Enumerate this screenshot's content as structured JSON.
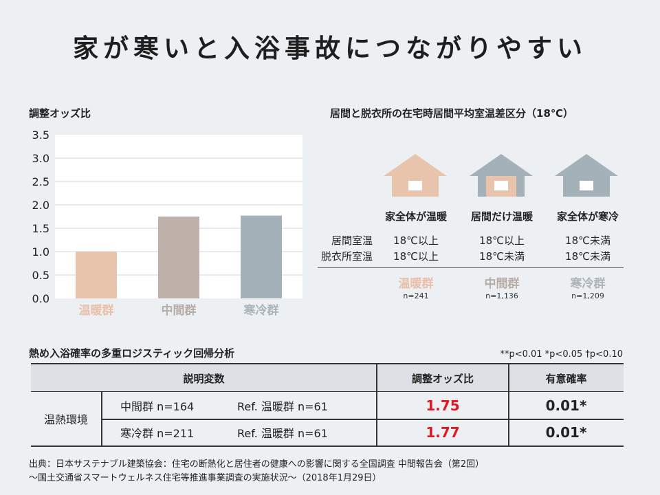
{
  "title": "家が寒いと入浴事故につながりやすい",
  "chart_data": {
    "type": "bar",
    "title": "調整オッズ比",
    "categories": [
      "温暖群",
      "中間群",
      "寒冷群"
    ],
    "values": [
      1.0,
      1.75,
      1.77
    ],
    "colors": [
      "#e9c4ad",
      "#bdb1aa",
      "#a4b1b8"
    ],
    "label_colors": [
      "#e8bfa8",
      "#b5aca6",
      "#a9b3b9"
    ],
    "ylim": [
      0,
      3.5
    ],
    "yticks": [
      "0.0",
      "0.5",
      "1.0",
      "1.5",
      "2.0",
      "2.5",
      "3.0",
      "3.5"
    ],
    "grid": true
  },
  "houses": {
    "caption": "居間と脱衣所の在宅時居間平均室温差区分（18℃）",
    "row_labels": [
      "居間室温",
      "脱衣所室温"
    ],
    "groups": [
      {
        "heading": "家全体が温暖",
        "living": "18℃以上",
        "dressing": "18℃以上",
        "name": "温暖群",
        "n": "n=241",
        "color": "#e9c4ad",
        "inner": "#e9c4ad"
      },
      {
        "heading": "居間だけ温暖",
        "living": "18℃以上",
        "dressing": "18℃未満",
        "name": "中間群",
        "n": "n=1,136",
        "color": "#a4b1b8",
        "inner": "#e9c4ad"
      },
      {
        "heading": "家全体が寒冷",
        "living": "18℃未満",
        "dressing": "18℃未満",
        "name": "寒冷群",
        "n": "n=1,209",
        "color": "#a4b1b8",
        "inner": "#a4b1b8"
      }
    ]
  },
  "regression": {
    "caption": "熱め入浴確率の多重ロジスティック回帰分析",
    "significance": "**p<0.01 *p<0.05 †p<0.10",
    "headers": {
      "variable": "説明変数",
      "odds": "調整オッズ比",
      "p": "有意確率"
    },
    "group_label": "温熱環境",
    "rows": [
      {
        "var": "中間群 n=164",
        "ref": "Ref. 温暖群 n=61",
        "odds": "1.75",
        "p": "0.01*"
      },
      {
        "var": "寒冷群 n=211",
        "ref": "Ref. 温暖群 n=61",
        "odds": "1.77",
        "p": "0.01*"
      }
    ]
  },
  "source": {
    "line1": "出典：日本サステナブル建築協会：住宅の断熱化と居住者の健康への影響に関する全国調査 中間報告会（第2回）",
    "line2": "～国土交通省スマートウェルネス住宅等推進事業調査の実施状況～（2018年1月29日）"
  }
}
